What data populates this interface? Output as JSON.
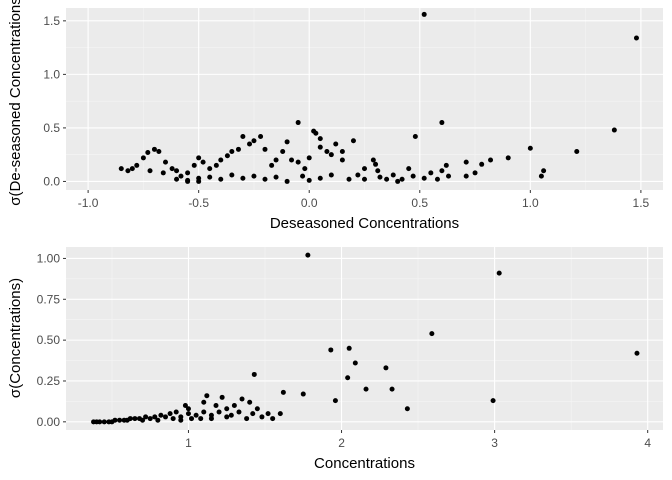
{
  "colors": {
    "panel_background": "#ebebeb",
    "major_grid": "#ffffff",
    "minor_grid": "#f5f5f5",
    "point": "#000000",
    "tick_text": "#4d4d4d"
  },
  "chart_data": [
    {
      "type": "scatter",
      "title": "",
      "xlabel": "Deseasoned Concentrations",
      "ylabel": "σ(De-seasoned Concentrations)",
      "xlim": [
        -1.1,
        1.6
      ],
      "ylim": [
        -0.08,
        1.62
      ],
      "x_ticks": [
        -1.0,
        -0.5,
        0.0,
        0.5,
        1.0,
        1.5
      ],
      "x_tick_labels": [
        "-1.0",
        "-0.5",
        "0.0",
        "0.5",
        "1.0",
        "1.5"
      ],
      "y_ticks": [
        0.0,
        0.5,
        1.0,
        1.5
      ],
      "y_tick_labels": [
        "0.0",
        "0.5",
        "1.0",
        "1.5"
      ],
      "grid": true,
      "points": [
        [
          0.52,
          1.56
        ],
        [
          1.48,
          1.34
        ],
        [
          1.38,
          0.48
        ],
        [
          1.21,
          0.28
        ],
        [
          1.0,
          0.31
        ],
        [
          0.9,
          0.22
        ],
        [
          1.06,
          0.1
        ],
        [
          1.05,
          0.05
        ],
        [
          0.82,
          0.2
        ],
        [
          0.78,
          0.16
        ],
        [
          0.75,
          0.08
        ],
        [
          0.71,
          0.18
        ],
        [
          0.71,
          0.05
        ],
        [
          0.6,
          0.55
        ],
        [
          0.48,
          0.42
        ],
        [
          0.62,
          0.15
        ],
        [
          0.6,
          0.1
        ],
        [
          0.63,
          0.05
        ],
        [
          0.55,
          0.08
        ],
        [
          0.58,
          0.02
        ],
        [
          0.52,
          0.03
        ],
        [
          0.45,
          0.12
        ],
        [
          0.47,
          0.05
        ],
        [
          0.42,
          0.02
        ],
        [
          0.38,
          0.06
        ],
        [
          0.35,
          0.02
        ],
        [
          0.3,
          0.16
        ],
        [
          0.29,
          0.2
        ],
        [
          0.31,
          0.1
        ],
        [
          0.32,
          0.04
        ],
        [
          0.25,
          0.12
        ],
        [
          0.22,
          0.06
        ],
        [
          0.18,
          0.02
        ],
        [
          0.15,
          0.2
        ],
        [
          0.12,
          0.35
        ],
        [
          0.1,
          0.25
        ],
        [
          0.08,
          0.28
        ],
        [
          0.05,
          0.4
        ],
        [
          0.05,
          0.32
        ],
        [
          0.03,
          0.45
        ],
        [
          0.02,
          0.47
        ],
        [
          0.0,
          0.22
        ],
        [
          -0.02,
          0.12
        ],
        [
          -0.05,
          0.18
        ],
        [
          -0.08,
          0.2
        ],
        [
          -0.1,
          0.37
        ],
        [
          -0.12,
          0.28
        ],
        [
          -0.15,
          0.2
        ],
        [
          -0.17,
          0.15
        ],
        [
          -0.2,
          0.3
        ],
        [
          -0.22,
          0.42
        ],
        [
          -0.25,
          0.38
        ],
        [
          -0.27,
          0.35
        ],
        [
          -0.3,
          0.42
        ],
        [
          -0.32,
          0.3
        ],
        [
          -0.35,
          0.28
        ],
        [
          -0.37,
          0.24
        ],
        [
          -0.4,
          0.2
        ],
        [
          -0.42,
          0.15
        ],
        [
          -0.45,
          0.12
        ],
        [
          -0.48,
          0.18
        ],
        [
          -0.5,
          0.22
        ],
        [
          -0.52,
          0.15
        ],
        [
          -0.55,
          0.08
        ],
        [
          -0.58,
          0.05
        ],
        [
          -0.6,
          0.1
        ],
        [
          -0.62,
          0.12
        ],
        [
          -0.65,
          0.18
        ],
        [
          -0.68,
          0.28
        ],
        [
          -0.7,
          0.3
        ],
        [
          -0.73,
          0.27
        ],
        [
          -0.75,
          0.22
        ],
        [
          -0.78,
          0.15
        ],
        [
          -0.8,
          0.12
        ],
        [
          -0.82,
          0.1
        ],
        [
          -0.85,
          0.12
        ],
        [
          -0.72,
          0.1
        ],
        [
          -0.66,
          0.08
        ],
        [
          -0.05,
          0.55
        ],
        [
          0.2,
          0.38
        ],
        [
          0.15,
          0.28
        ],
        [
          -0.03,
          0.05
        ],
        [
          0.05,
          0.03
        ],
        [
          0.1,
          0.06
        ],
        [
          -0.15,
          0.04
        ],
        [
          -0.2,
          0.02
        ],
        [
          -0.25,
          0.05
        ],
        [
          -0.3,
          0.03
        ],
        [
          -0.35,
          0.06
        ],
        [
          -0.4,
          0.02
        ],
        [
          -0.45,
          0.04
        ],
        [
          -0.5,
          0.03
        ],
        [
          -0.55,
          0.01
        ],
        [
          -0.6,
          0.02
        ],
        [
          0.25,
          0.02
        ],
        [
          0.4,
          0.0
        ],
        [
          0.0,
          0.01
        ],
        [
          -0.1,
          0.0
        ],
        [
          -0.55,
          0.0
        ],
        [
          -0.5,
          0.0
        ]
      ]
    },
    {
      "type": "scatter",
      "title": "",
      "xlabel": "Concentrations",
      "ylabel": "σ(Concentrations)",
      "xlim": [
        0.2,
        4.1
      ],
      "ylim": [
        -0.05,
        1.07
      ],
      "x_ticks": [
        1,
        2,
        3,
        4
      ],
      "x_tick_labels": [
        "1",
        "2",
        "3",
        "4"
      ],
      "y_ticks": [
        0.0,
        0.25,
        0.5,
        0.75,
        1.0
      ],
      "y_tick_labels": [
        "0.00",
        "0.25",
        "0.50",
        "0.75",
        "1.00"
      ],
      "grid": true,
      "points": [
        [
          1.78,
          1.02
        ],
        [
          3.03,
          0.91
        ],
        [
          3.93,
          0.42
        ],
        [
          2.59,
          0.54
        ],
        [
          1.93,
          0.44
        ],
        [
          2.05,
          0.45
        ],
        [
          2.09,
          0.36
        ],
        [
          2.29,
          0.33
        ],
        [
          2.04,
          0.27
        ],
        [
          2.16,
          0.2
        ],
        [
          2.33,
          0.2
        ],
        [
          1.43,
          0.29
        ],
        [
          1.75,
          0.17
        ],
        [
          1.62,
          0.18
        ],
        [
          1.96,
          0.13
        ],
        [
          2.43,
          0.08
        ],
        [
          2.99,
          0.13
        ],
        [
          1.6,
          0.05
        ],
        [
          1.52,
          0.05
        ],
        [
          1.45,
          0.08
        ],
        [
          1.4,
          0.12
        ],
        [
          1.35,
          0.14
        ],
        [
          1.3,
          0.1
        ],
        [
          1.25,
          0.08
        ],
        [
          1.2,
          0.06
        ],
        [
          1.15,
          0.04
        ],
        [
          1.1,
          0.06
        ],
        [
          1.05,
          0.04
        ],
        [
          1.0,
          0.05
        ],
        [
          0.95,
          0.03
        ],
        [
          0.9,
          0.02
        ],
        [
          0.85,
          0.03
        ],
        [
          0.8,
          0.01
        ],
        [
          0.75,
          0.02
        ],
        [
          0.7,
          0.01
        ],
        [
          0.65,
          0.02
        ],
        [
          0.6,
          0.01
        ],
        [
          0.55,
          0.01
        ],
        [
          0.5,
          0.0
        ],
        [
          0.45,
          0.0
        ],
        [
          0.4,
          0.0
        ],
        [
          1.1,
          0.12
        ],
        [
          1.18,
          0.1
        ],
        [
          1.28,
          0.04
        ],
        [
          1.33,
          0.06
        ],
        [
          1.38,
          0.02
        ],
        [
          1.48,
          0.03
        ],
        [
          1.08,
          0.02
        ],
        [
          0.98,
          0.1
        ],
        [
          1.0,
          0.08
        ],
        [
          1.12,
          0.16
        ],
        [
          1.22,
          0.15
        ],
        [
          0.92,
          0.06
        ],
        [
          0.88,
          0.05
        ],
        [
          0.82,
          0.04
        ],
        [
          0.78,
          0.03
        ],
        [
          0.72,
          0.03
        ],
        [
          0.68,
          0.02
        ],
        [
          0.62,
          0.02
        ],
        [
          0.58,
          0.01
        ],
        [
          0.52,
          0.01
        ],
        [
          0.48,
          0.0
        ],
        [
          0.42,
          0.0
        ],
        [
          0.38,
          0.0
        ],
        [
          1.02,
          0.02
        ],
        [
          1.15,
          0.02
        ],
        [
          1.25,
          0.03
        ],
        [
          1.42,
          0.05
        ],
        [
          1.55,
          0.02
        ],
        [
          0.95,
          0.01
        ]
      ]
    }
  ]
}
